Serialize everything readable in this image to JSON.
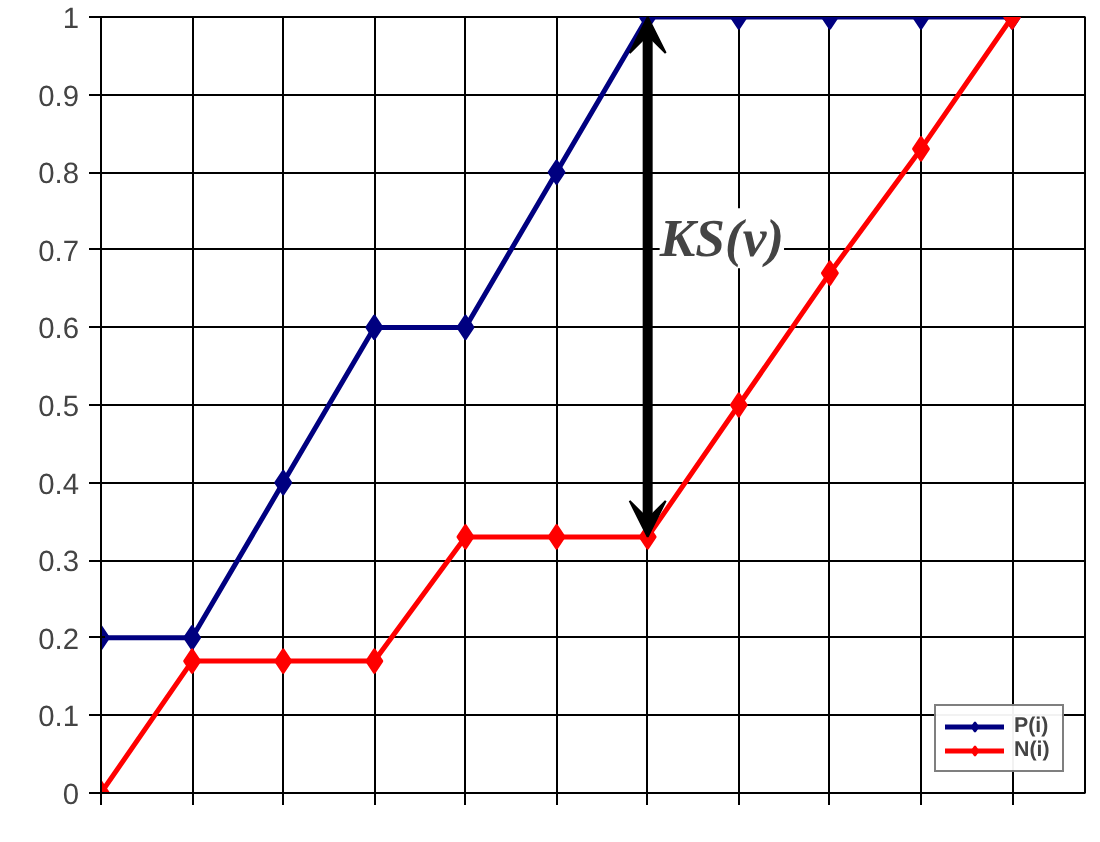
{
  "chart_data": {
    "type": "line",
    "categories": [
      null,
      null,
      null,
      null,
      null,
      null,
      null,
      null,
      null,
      null,
      null
    ],
    "ylim": [
      0,
      1
    ],
    "yticks": [
      0,
      0.1,
      0.2,
      0.3,
      0.4,
      0.5,
      0.6,
      0.7,
      0.8,
      0.9,
      1
    ],
    "series": [
      {
        "name": "P(i)",
        "color": "#000080",
        "values": [
          0.2,
          0.2,
          0.4,
          0.6,
          0.6,
          0.8,
          1,
          1,
          1,
          1,
          1
        ]
      },
      {
        "name": "N(i)",
        "color": "#ff0000",
        "values": [
          0,
          0.17,
          0.17,
          0.17,
          0.33,
          0.33,
          0.33,
          0.5,
          0.67,
          0.83,
          1
        ]
      }
    ],
    "annotations": [
      "KS(v)"
    ],
    "grid": true,
    "legend": "bottom right",
    "marker": "diamond",
    "line_style": "solid",
    "tick_labels": "y"
  }
}
